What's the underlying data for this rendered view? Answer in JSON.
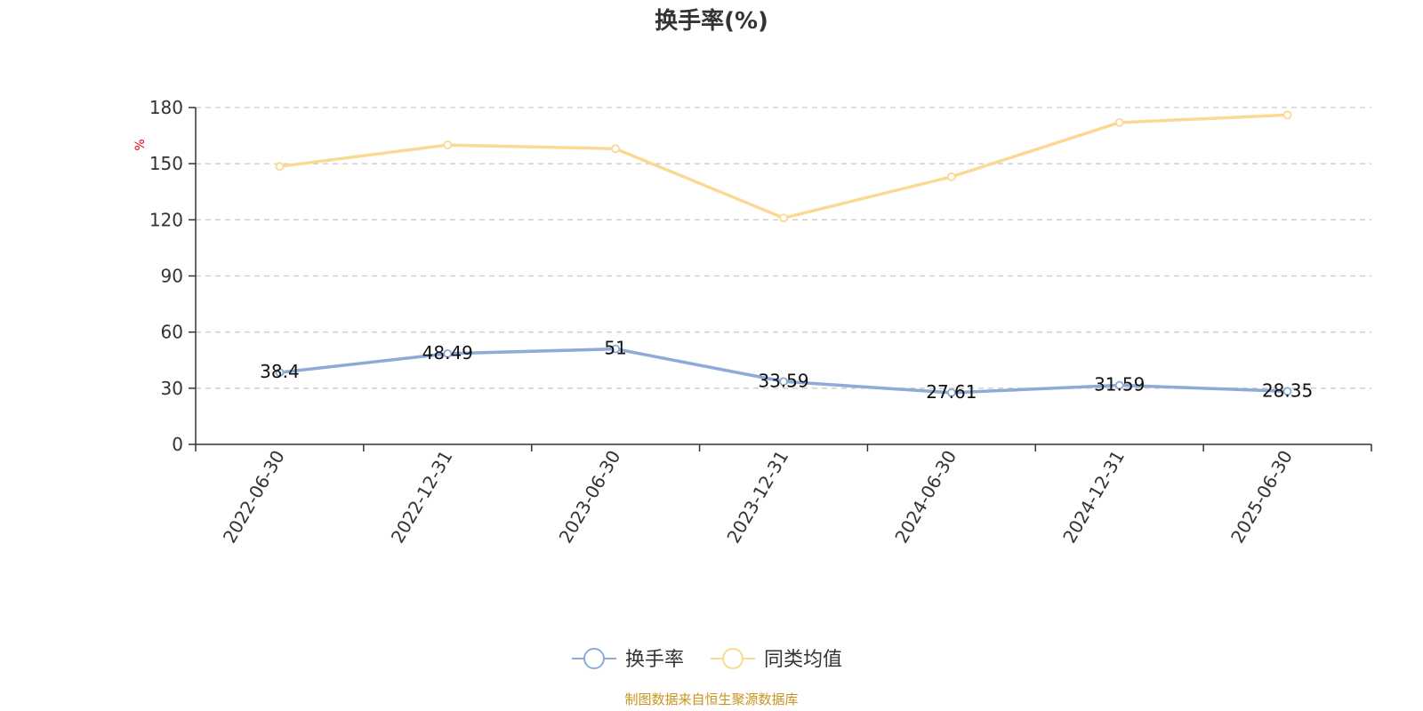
{
  "chart_data": {
    "type": "line",
    "title": "换手率(%)",
    "ylabel": "%",
    "xlabel": "",
    "categories": [
      "2022-06-30",
      "2022-12-31",
      "2023-06-30",
      "2023-12-31",
      "2024-06-30",
      "2024-12-31",
      "2025-06-30"
    ],
    "ylim": [
      0,
      180
    ],
    "yticks": [
      0,
      30,
      60,
      90,
      120,
      150,
      180
    ],
    "grid": true,
    "legend_position": "bottom-center",
    "series": [
      {
        "name": "换手率",
        "color": "#8eaad6",
        "values": [
          38.4,
          48.49,
          51,
          33.59,
          27.61,
          31.59,
          28.35
        ],
        "data_labels": [
          "38.4",
          "48.49",
          "51",
          "33.59",
          "27.61",
          "31.59",
          "28.35"
        ],
        "show_labels": true
      },
      {
        "name": "同类均值",
        "color": "#fbd994",
        "values": [
          148.5,
          160,
          158,
          121,
          143,
          172,
          176
        ],
        "show_labels": false
      }
    ]
  },
  "footer": {
    "source": "制图数据来自恒生聚源数据库"
  }
}
